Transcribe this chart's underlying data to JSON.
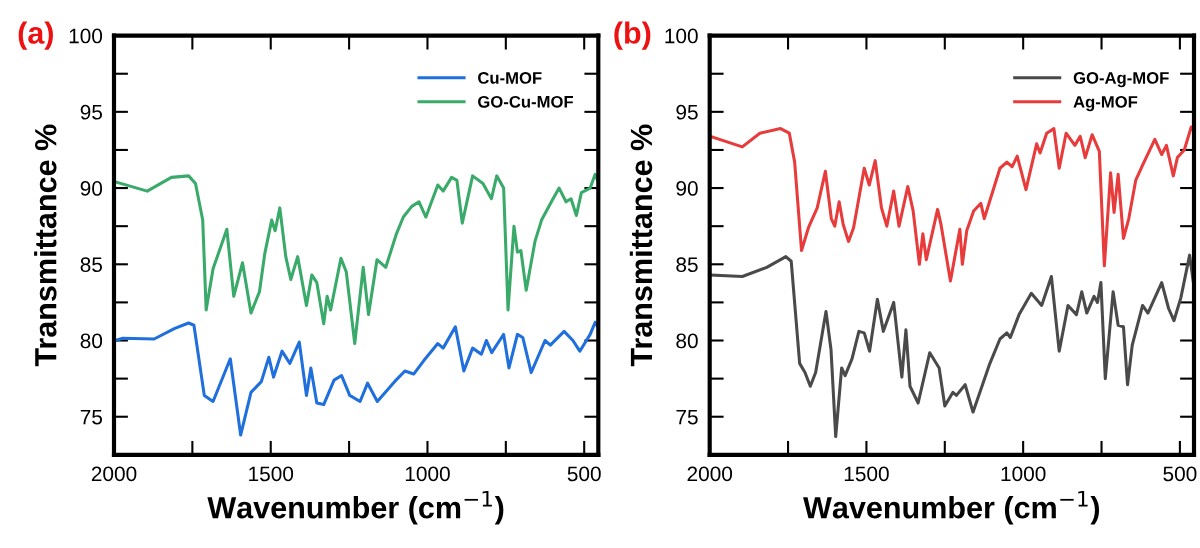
{
  "chart_data": [
    {
      "type": "line",
      "title": "(a)",
      "xlabel": "Wavenumber (cm$^{−1}$)",
      "ylabel": "Transmittance %",
      "xlim": [
        2000,
        455
      ],
      "ylim": [
        72.5,
        100
      ],
      "xticks": [
        2000,
        {
          "value": 1750,
          "label": null
        },
        1500,
        {
          "value": 1250,
          "label": null
        },
        1000,
        {
          "value": 750,
          "label": null
        },
        500
      ],
      "yticks": [
        75,
        {
          "value": 77.5,
          "label": null
        },
        80,
        {
          "value": 82.5,
          "label": null
        },
        85,
        {
          "value": 87.5,
          "label": null
        },
        90,
        {
          "value": 92.5,
          "label": null
        },
        95,
        {
          "value": 97.5,
          "label": null
        },
        100
      ],
      "grid": false,
      "legend": "top right",
      "marker": "none",
      "line_style": "solid",
      "series": [
        {
          "name": "Cu-MOF",
          "color": "#1f6fdc",
          "x": [
            1995,
            1972,
            1872,
            1806,
            1762,
            1745,
            1712,
            1684,
            1629,
            1596,
            1563,
            1530,
            1506,
            1491,
            1464,
            1439,
            1409,
            1386,
            1372,
            1353,
            1331,
            1298,
            1274,
            1248,
            1215,
            1191,
            1160,
            1105,
            1072,
            1044,
            1011,
            967,
            950,
            911,
            884,
            856,
            828,
            812,
            795,
            773,
            757,
            740,
            713,
            696,
            669,
            625,
            608,
            564,
            536,
            514,
            481,
            465,
            457
          ],
          "values": [
            80.0,
            80.15,
            80.1,
            80.8,
            81.15,
            81.0,
            76.4,
            76.0,
            78.8,
            73.8,
            76.6,
            77.3,
            78.9,
            77.6,
            79.3,
            78.5,
            79.9,
            76.4,
            78.2,
            75.9,
            75.8,
            77.4,
            77.7,
            76.4,
            76.0,
            77.2,
            76.0,
            77.3,
            78.0,
            77.8,
            78.7,
            79.8,
            79.5,
            80.9,
            78.0,
            79.5,
            79.1,
            80.0,
            79.2,
            79.9,
            80.4,
            78.2,
            80.4,
            80.2,
            77.9,
            80.0,
            79.7,
            80.6,
            80.0,
            79.3,
            80.4,
            81.2,
            80.9
          ]
        },
        {
          "name": "GO-Cu-MOF",
          "color": "#3aaa6a",
          "x": [
            1995,
            1894,
            1817,
            1762,
            1740,
            1717,
            1706,
            1684,
            1640,
            1618,
            1590,
            1563,
            1536,
            1519,
            1497,
            1486,
            1471,
            1452,
            1436,
            1414,
            1386,
            1369,
            1353,
            1331,
            1320,
            1309,
            1276,
            1259,
            1232,
            1205,
            1188,
            1161,
            1133,
            1099,
            1077,
            1050,
            1027,
            1005,
            967,
            950,
            923,
            906,
            889,
            856,
            823,
            796,
            779,
            757,
            743,
            724,
            713,
            702,
            685,
            657,
            636,
            602,
            580,
            558,
            542,
            525,
            509,
            481,
            465,
            457
          ],
          "values": [
            90.4,
            89.8,
            90.7,
            90.8,
            90.3,
            87.9,
            82.0,
            84.7,
            87.3,
            82.9,
            85.1,
            81.8,
            83.2,
            85.7,
            87.9,
            87.2,
            88.7,
            85.5,
            84.0,
            85.5,
            82.3,
            84.3,
            83.8,
            81.1,
            82.9,
            82.0,
            85.4,
            84.5,
            79.8,
            84.8,
            81.7,
            85.3,
            84.8,
            87.0,
            88.1,
            88.8,
            89.1,
            88.1,
            90.2,
            89.8,
            90.7,
            90.5,
            87.7,
            90.8,
            90.3,
            89.3,
            90.8,
            90.0,
            82.0,
            87.5,
            85.8,
            85.9,
            83.3,
            86.5,
            87.9,
            89.2,
            90.0,
            89.1,
            89.3,
            88.2,
            89.7,
            90.0,
            90.9,
            90.5
          ]
        }
      ]
    },
    {
      "type": "line",
      "title": "(b)",
      "xlabel": "Wavenumber (cm$^{−1}$)",
      "ylabel": "Transmittance %",
      "xlim": [
        2000,
        455
      ],
      "ylim": [
        72.5,
        100
      ],
      "xticks": [
        2000,
        {
          "value": 1750,
          "label": null
        },
        1500,
        {
          "value": 1250,
          "label": null
        },
        1000,
        {
          "value": 750,
          "label": null
        },
        500
      ],
      "yticks": [
        75,
        {
          "value": 77.5,
          "label": null
        },
        80,
        {
          "value": 82.5,
          "label": null
        },
        85,
        {
          "value": 87.5,
          "label": null
        },
        90,
        {
          "value": 92.5,
          "label": null
        },
        95,
        {
          "value": 97.5,
          "label": null
        },
        100
      ],
      "grid": false,
      "legend": "top right",
      "marker": "none",
      "line_style": "solid",
      "series": [
        {
          "name": "GO-Ag-MOF",
          "color": "#4a4a4a",
          "x": [
            1996,
            1896,
            1818,
            1757,
            1740,
            1713,
            1696,
            1679,
            1662,
            1629,
            1613,
            1598,
            1579,
            1568,
            1546,
            1524,
            1507,
            1490,
            1465,
            1446,
            1413,
            1387,
            1374,
            1361,
            1335,
            1298,
            1268,
            1250,
            1224,
            1213,
            1185,
            1160,
            1108,
            1074,
            1052,
            1041,
            1013,
            974,
            941,
            910,
            885,
            857,
            830,
            813,
            797,
            774,
            763,
            752,
            738,
            713,
            697,
            680,
            667,
            652,
            619,
            602,
            558,
            536,
            519,
            497,
            469,
            455
          ],
          "values": [
            84.3,
            84.2,
            84.8,
            85.5,
            85.2,
            78.5,
            77.9,
            77.0,
            77.9,
            81.9,
            79.4,
            73.7,
            78.2,
            77.7,
            78.8,
            80.6,
            80.5,
            79.3,
            82.7,
            80.6,
            82.5,
            77.6,
            80.7,
            77.0,
            75.9,
            79.2,
            78.2,
            75.7,
            76.6,
            76.4,
            77.1,
            75.3,
            78.4,
            80.1,
            80.5,
            80.2,
            81.7,
            83.1,
            82.3,
            84.2,
            79.3,
            82.3,
            81.7,
            83.2,
            81.8,
            82.9,
            82.5,
            83.8,
            77.5,
            83.2,
            81.0,
            80.9,
            77.1,
            79.7,
            82.3,
            81.8,
            83.8,
            82.1,
            81.3,
            82.8,
            85.6,
            83.5
          ]
        },
        {
          "name": "Ag-MOF",
          "color": "#e83b3b",
          "x": [
            2000,
            1896,
            1840,
            1774,
            1746,
            1729,
            1707,
            1685,
            1657,
            1631,
            1612,
            1601,
            1587,
            1574,
            1557,
            1541,
            1507,
            1491,
            1472,
            1452,
            1435,
            1413,
            1396,
            1368,
            1351,
            1331,
            1320,
            1309,
            1273,
            1262,
            1232,
            1202,
            1194,
            1180,
            1158,
            1135,
            1124,
            1074,
            1052,
            1035,
            1019,
            991,
            957,
            946,
            925,
            902,
            885,
            863,
            835,
            818,
            802,
            780,
            757,
            741,
            721,
            710,
            697,
            680,
            663,
            641,
            619,
            580,
            558,
            543,
            521,
            508,
            486,
            464,
            455
          ],
          "values": [
            93.4,
            92.7,
            93.6,
            93.9,
            93.6,
            91.7,
            85.9,
            87.4,
            88.7,
            91.1,
            88.0,
            87.5,
            89.1,
            87.6,
            86.5,
            87.4,
            91.3,
            90.2,
            91.8,
            88.7,
            87.5,
            89.8,
            87.5,
            90.1,
            88.5,
            85.0,
            87.0,
            85.3,
            88.6,
            87.6,
            83.9,
            87.3,
            85.0,
            87.2,
            88.5,
            89.0,
            88.0,
            91.3,
            91.7,
            91.4,
            92.1,
            89.9,
            92.9,
            92.3,
            93.6,
            93.9,
            91.3,
            93.6,
            92.8,
            93.4,
            92.0,
            93.5,
            92.4,
            84.9,
            91.0,
            88.4,
            90.9,
            86.7,
            88.0,
            90.5,
            91.5,
            93.2,
            92.2,
            92.8,
            90.8,
            92.0,
            92.5,
            94.0,
            93.7
          ]
        }
      ]
    }
  ]
}
